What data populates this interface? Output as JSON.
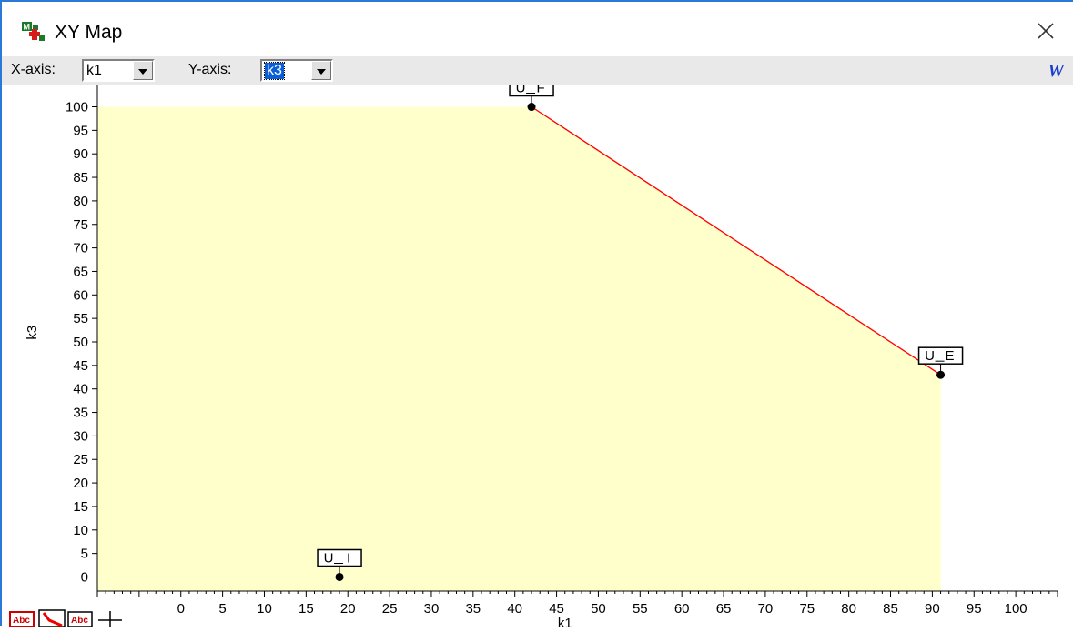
{
  "window": {
    "title": "XY Map"
  },
  "toolbar": {
    "x_label": "X-axis:",
    "x_value": "k1",
    "y_label": "Y-axis:",
    "y_value": "k3",
    "w_icon": "W"
  },
  "chart_data": {
    "type": "scatter",
    "xlabel": "k1",
    "ylabel": "k3",
    "xlim": [
      -10,
      105
    ],
    "ylim": [
      -3,
      103
    ],
    "xticks": [
      0,
      5,
      10,
      15,
      20,
      25,
      30,
      35,
      40,
      45,
      50,
      55,
      60,
      65,
      70,
      75,
      80,
      85,
      90,
      95,
      100
    ],
    "yticks": [
      0,
      5,
      10,
      15,
      20,
      25,
      30,
      35,
      40,
      45,
      50,
      55,
      60,
      65,
      70,
      75,
      80,
      85,
      90,
      95,
      100
    ],
    "region_color": "#ffffcc",
    "line_color": "#ff0000",
    "points": [
      {
        "label": "U_F",
        "x": 42,
        "y": 100
      },
      {
        "label": "U_E",
        "x": 91,
        "y": 43
      },
      {
        "label": "U_I",
        "x": 19,
        "y": 0
      }
    ],
    "line": [
      [
        42,
        100
      ],
      [
        91,
        43
      ]
    ],
    "region_polygon": [
      [
        -10,
        -3
      ],
      [
        -10,
        100
      ],
      [
        42,
        100
      ],
      [
        91,
        43
      ],
      [
        91,
        -3
      ]
    ]
  },
  "bottom_tools": [
    "label-tool-icon",
    "line-tool-icon",
    "label-tool-icon",
    "crosshair-icon"
  ]
}
